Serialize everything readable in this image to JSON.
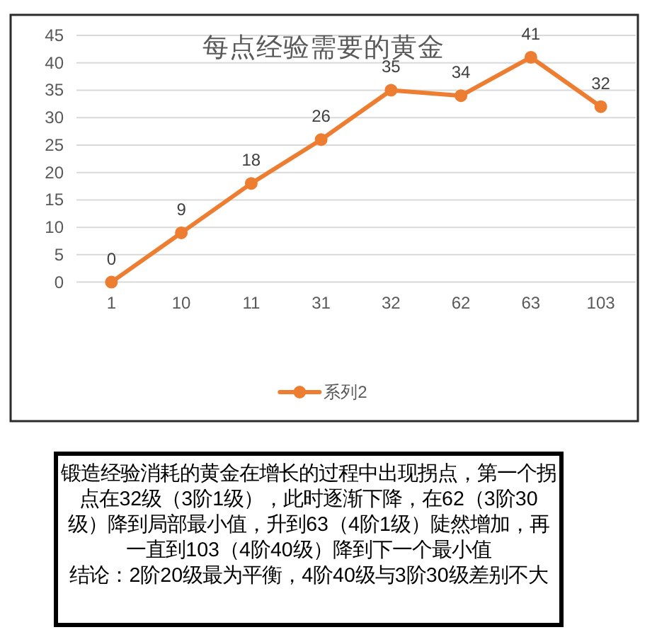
{
  "chart_data": {
    "type": "line",
    "title": "每点经验需要的黄金",
    "categories": [
      "1",
      "10",
      "11",
      "31",
      "32",
      "62",
      "63",
      "103"
    ],
    "series": [
      {
        "name": "系列2",
        "color": "#ed7d31",
        "values": [
          0,
          9,
          18,
          26,
          35,
          34,
          41,
          32
        ]
      }
    ],
    "ylim": [
      0,
      45
    ],
    "yticks": [
      0,
      5,
      10,
      15,
      20,
      25,
      30,
      35,
      40,
      45
    ],
    "grid": "y",
    "legend": "bottom",
    "marker": "circle",
    "line_style": "solid",
    "data_labels": true,
    "annotations": [
      "锻造经验消耗的黄金在增长的过程中出现拐点，第一个拐点在32级（3阶1级），此时逐渐下降，在62（3阶30级）降到局部最小值，升到63（4阶1级）陡然增加，再一直到103（4阶40级）降到下一个最小值",
      "结论：2阶20级最为平衡，4阶40级与3阶30级差别不大"
    ]
  }
}
